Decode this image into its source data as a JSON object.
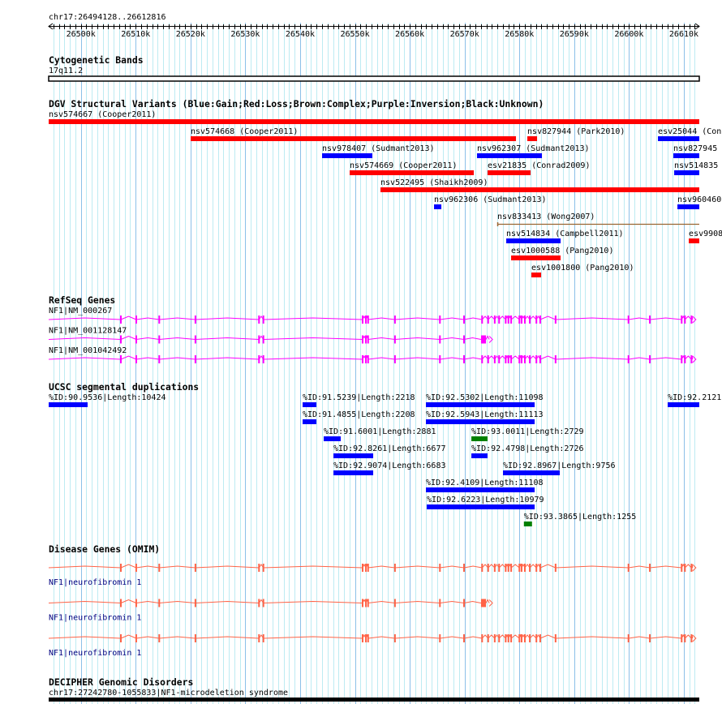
{
  "view": {
    "chrom": "chr17",
    "start": 26494128,
    "end": 26612816,
    "location_label": "chr17:26494128..26612816"
  },
  "ruler": {
    "labels": [
      "26500k",
      "26510k",
      "26520k",
      "26530k",
      "26540k",
      "26550k",
      "26560k",
      "26570k",
      "26580k",
      "26590k",
      "26600k",
      "26610k"
    ]
  },
  "colors": {
    "gain": "#0000FF",
    "loss": "#FF0000",
    "complex": "#996633",
    "refseq": "#FF00FF",
    "omim": "#FF6347",
    "omim_label": "#000080",
    "segdup_blue": "#0000FF",
    "segdup_green": "#008000",
    "grid_minor": "#BDEBF2",
    "grid_major": "#8CC0E8"
  },
  "tracks": {
    "cytoband": {
      "title": "Cytogenetic Bands",
      "band": "17q11.2"
    },
    "dgv": {
      "title": "DGV Structural Variants (Blue:Gain;Red:Loss;Brown:Complex;Purple:Inversion;Black:Unknown)",
      "features": [
        {
          "label": "nsv574667 (Cooper2011)",
          "start": 26480000,
          "end": 26700000,
          "type": "loss"
        },
        {
          "label": "nsv574668 (Cooper2011)",
          "start": 26520028,
          "end": 26579376,
          "type": "loss"
        },
        {
          "label": "nsv827944 (Park2010)",
          "start": 26581448,
          "end": 26583224,
          "type": "loss"
        },
        {
          "label": "esv25044 (Conr",
          "start": 26605276,
          "end": 26640000,
          "type": "gain"
        },
        {
          "label": "nsv978407 (Sudmant2013)",
          "start": 26544004,
          "end": 26553180,
          "type": "gain"
        },
        {
          "label": "nsv962307 (Sudmant2013)",
          "start": 26572272,
          "end": 26584112,
          "type": "gain"
        },
        {
          "label": "nsv827945",
          "start": 26608088,
          "end": 26640000,
          "type": "gain"
        },
        {
          "label": "nsv574669 (Cooper2011)",
          "start": 26549036,
          "end": 26571680,
          "type": "loss"
        },
        {
          "label": "esv21835 (Conrad2009)",
          "start": 26574196,
          "end": 26582040,
          "type": "loss"
        },
        {
          "label": "nsv514835",
          "start": 26608236,
          "end": 26640000,
          "type": "gain"
        },
        {
          "label": "nsv522495 (Shaikh2009)",
          "start": 26554660,
          "end": 26700000,
          "type": "loss"
        },
        {
          "label": "nsv962306 (Sudmant2013)",
          "start": 26564428,
          "end": 26565760,
          "type": "gain"
        },
        {
          "label": "nsv960460",
          "start": 26608828,
          "end": 26640000,
          "type": "gain"
        },
        {
          "label": "nsv833413 (Wong2007)",
          "start": 26575972,
          "end": 26700000,
          "type": "complex"
        },
        {
          "label": "nsv514834 (Campbell2011)",
          "start": 26577600,
          "end": 26587516,
          "type": "gain"
        },
        {
          "label": "esv9908",
          "start": 26610900,
          "end": 26640000,
          "type": "loss"
        },
        {
          "label": "esv1000588 (Pang2010)",
          "start": 26578488,
          "end": 26587516,
          "type": "loss"
        },
        {
          "label": "esv1001800 (Pang2010)",
          "start": 26582188,
          "end": 26583964,
          "type": "loss"
        }
      ]
    },
    "refseq": {
      "title": "RefSeq Genes",
      "genes": [
        {
          "label": "NF1|NM_000267",
          "model": "long"
        },
        {
          "label": "NF1|NM_001128147",
          "model": "short"
        },
        {
          "label": "NF1|NM_001042492",
          "model": "long"
        }
      ]
    },
    "segdups": {
      "title": "UCSC segmental duplications",
      "features": [
        {
          "label": "%ID:90.9536|Length:10424",
          "start": 26480000,
          "end": 26501232,
          "color": "blue"
        },
        {
          "label": "%ID:91.5239|Length:2218",
          "start": 26540452,
          "end": 26542968,
          "color": "blue"
        },
        {
          "label": "%ID:92.5302|Length:11098",
          "start": 26562948,
          "end": 26582780,
          "color": "blue"
        },
        {
          "label": "%ID:92.2121",
          "start": 26607052,
          "end": 26640000,
          "color": "blue"
        },
        {
          "label": "%ID:91.4855|Length:2208",
          "start": 26540452,
          "end": 26542968,
          "color": "blue"
        },
        {
          "label": "%ID:92.5943|Length:11113",
          "start": 26562948,
          "end": 26582780,
          "color": "blue"
        },
        {
          "label": "%ID:91.6001|Length:2881",
          "start": 26544300,
          "end": 26547408,
          "color": "blue"
        },
        {
          "label": "%ID:93.0011|Length:2729",
          "start": 26571236,
          "end": 26574196,
          "color": "green"
        },
        {
          "label": "%ID:92.8261|Length:6677",
          "start": 26546076,
          "end": 26553328,
          "color": "blue"
        },
        {
          "label": "%ID:92.4798|Length:2726",
          "start": 26571236,
          "end": 26574196,
          "color": "blue"
        },
        {
          "label": "%ID:92.9074|Length:6683",
          "start": 26546076,
          "end": 26553328,
          "color": "blue"
        },
        {
          "label": "%ID:92.8967|Length:9756",
          "start": 26577008,
          "end": 26587368,
          "color": "blue"
        },
        {
          "label": "%ID:92.4109|Length:11108",
          "start": 26562948,
          "end": 26582780,
          "color": "blue"
        },
        {
          "label": "%ID:92.6223|Length:10979",
          "start": 26563096,
          "end": 26582780,
          "color": "blue"
        },
        {
          "label": "%ID:93.3865|Length:1255",
          "start": 26580820,
          "end": 26582300,
          "color": "green"
        }
      ]
    },
    "omim": {
      "title": "Disease Genes (OMIM)",
      "genes": [
        {
          "label": "NF1|neurofibromin 1",
          "model": "long"
        },
        {
          "label": "NF1|neurofibromin 1",
          "model": "short"
        },
        {
          "label": "NF1|neurofibromin 1",
          "model": "long"
        }
      ]
    },
    "decipher": {
      "title": "DECIPHER Genomic Disorders",
      "label": "chr17:27242780-1055833|NF1-microdeletion syndrome"
    }
  },
  "gene_models": {
    "long": {
      "start_kb": 26480.0,
      "end_kb": 26612.2,
      "exons_kb": [
        26507.3,
        26510.1,
        26514.3,
        26520.9,
        26532.5,
        26533.3,
        26551.4,
        26552.0,
        26552.4,
        26557.3,
        26565.5,
        26569.9,
        26573.2,
        26574.3,
        26575.5,
        26576.3,
        26577.5,
        26578.0,
        26578.5,
        26580.0,
        26580.4,
        26581.0,
        26581.9,
        26583.1,
        26583.8,
        26586.6,
        26599.9,
        26603.8,
        26609.6,
        26610.2,
        26611.4
      ],
      "big_exons_kb": []
    },
    "short": {
      "start_kb": 26480.0,
      "end_kb": 26575.1,
      "exons_kb": [
        26507.3,
        26510.1,
        26514.3,
        26520.9,
        26532.5,
        26533.3,
        26551.4,
        26552.0,
        26552.4,
        26557.3,
        26565.5,
        26569.9
      ],
      "big_exons_kb": [
        [
          26573.0,
          26573.9
        ]
      ]
    }
  }
}
